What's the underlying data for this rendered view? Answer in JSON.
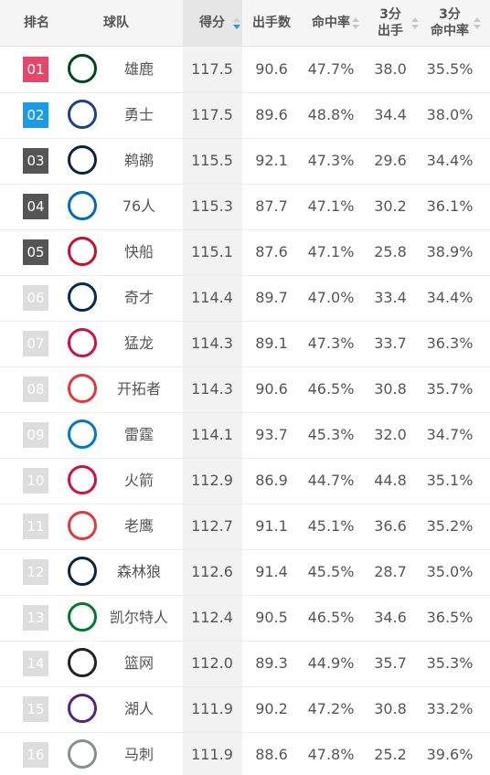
{
  "table": {
    "header": [
      [
        "排名"
      ],
      [
        "球队"
      ],
      [
        "得分"
      ],
      [
        "出手数"
      ],
      [
        "命中率"
      ],
      [
        "3分",
        "出手"
      ],
      [
        "3分",
        "命中率"
      ]
    ],
    "rows": [
      {
        "rank": "01",
        "team": "雄鹿",
        "stats": [
          "117.5",
          "90.6",
          "47.7%",
          "38.0",
          "35.5%"
        ]
      },
      {
        "rank": "02",
        "team": "勇士",
        "stats": [
          "117.5",
          "89.6",
          "48.8%",
          "34.4",
          "38.0%"
        ]
      },
      {
        "rank": "03",
        "team": "鹈鹕",
        "stats": [
          "115.5",
          "92.1",
          "47.3%",
          "29.6",
          "34.4%"
        ]
      },
      {
        "rank": "04",
        "team": "76人",
        "stats": [
          "115.3",
          "87.7",
          "47.1%",
          "30.2",
          "36.1%"
        ]
      },
      {
        "rank": "05",
        "team": "快船",
        "stats": [
          "115.1",
          "87.6",
          "47.1%",
          "25.8",
          "38.9%"
        ]
      },
      {
        "rank": "06",
        "team": "奇才",
        "stats": [
          "114.4",
          "89.7",
          "47.0%",
          "33.4",
          "34.4%"
        ]
      },
      {
        "rank": "07",
        "team": "猛龙",
        "stats": [
          "114.3",
          "89.1",
          "47.3%",
          "33.7",
          "36.3%"
        ]
      },
      {
        "rank": "08",
        "team": "开拓者",
        "stats": [
          "114.3",
          "90.6",
          "46.5%",
          "30.8",
          "35.7%"
        ]
      },
      {
        "rank": "09",
        "team": "雷霆",
        "stats": [
          "114.1",
          "93.7",
          "45.3%",
          "32.0",
          "34.7%"
        ]
      },
      {
        "rank": "10",
        "team": "火箭",
        "stats": [
          "112.9",
          "86.9",
          "44.7%",
          "44.8",
          "35.1%"
        ]
      },
      {
        "rank": "11",
        "team": "老鹰",
        "stats": [
          "112.7",
          "91.1",
          "45.1%",
          "36.6",
          "35.2%"
        ]
      },
      {
        "rank": "12",
        "team": "森林狼",
        "stats": [
          "112.6",
          "91.4",
          "45.5%",
          "28.7",
          "35.0%"
        ]
      },
      {
        "rank": "13",
        "team": "凯尔特人",
        "stats": [
          "112.4",
          "90.5",
          "46.5%",
          "34.6",
          "36.5%"
        ]
      },
      {
        "rank": "14",
        "team": "篮网",
        "stats": [
          "112.0",
          "89.3",
          "44.9%",
          "35.7",
          "35.3%"
        ]
      },
      {
        "rank": "15",
        "team": "湖人",
        "stats": [
          "111.9",
          "90.2",
          "47.2%",
          "30.8",
          "33.2%"
        ]
      },
      {
        "rank": "16",
        "team": "马刺",
        "stats": [
          "111.9",
          "88.6",
          "47.8%",
          "25.2",
          "39.6%"
        ]
      }
    ]
  }
}
